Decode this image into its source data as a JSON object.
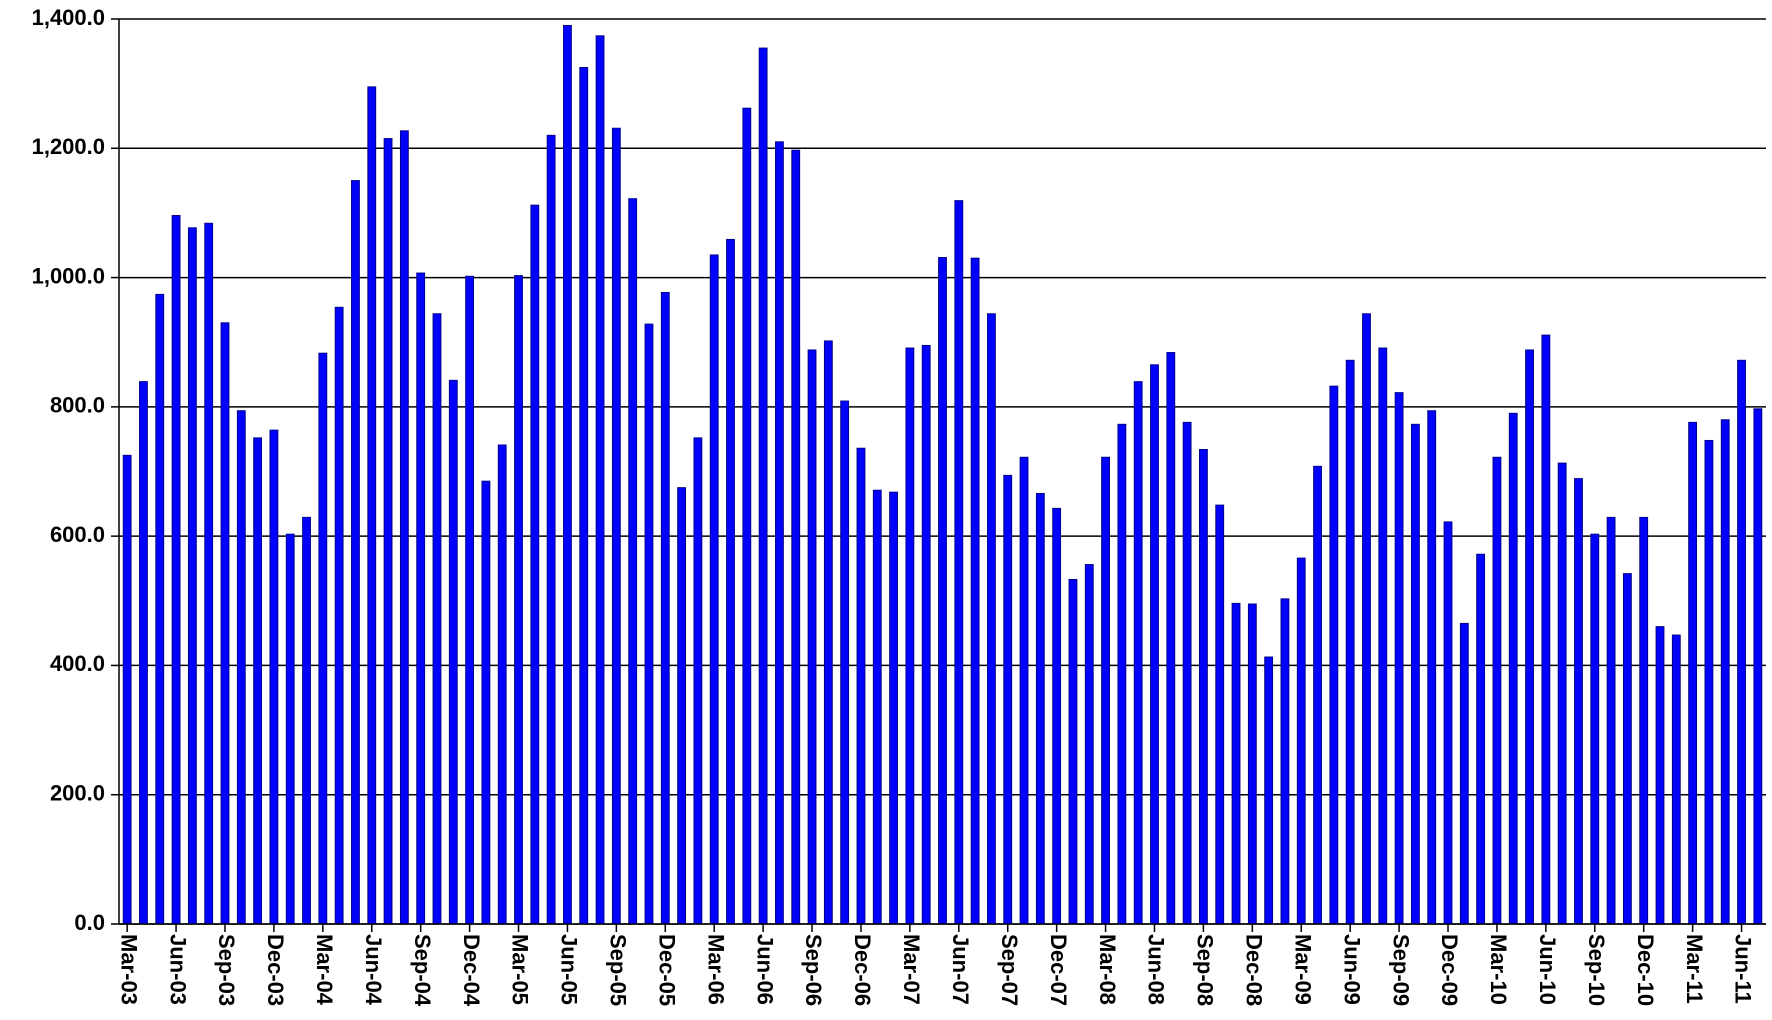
{
  "chart_data": {
    "type": "bar",
    "color": "#0000ff",
    "categories": [
      "Mar-03",
      null,
      null,
      "Jun-03",
      null,
      null,
      "Sep-03",
      null,
      null,
      "Dec-03",
      null,
      null,
      "Mar-04",
      null,
      null,
      "Jun-04",
      null,
      null,
      "Sep-04",
      null,
      null,
      "Dec-04",
      null,
      null,
      "Mar-05",
      null,
      null,
      "Jun-05",
      null,
      null,
      "Sep-05",
      null,
      null,
      "Dec-05",
      null,
      null,
      "Mar-06",
      null,
      null,
      "Jun-06",
      null,
      null,
      "Sep-06",
      null,
      null,
      "Dec-06",
      null,
      null,
      "Mar-07",
      null,
      null,
      "Jun-07",
      null,
      null,
      "Sep-07",
      null,
      null,
      "Dec-07",
      null,
      null,
      "Mar-08",
      null,
      null,
      "Jun-08",
      null,
      null,
      "Sep-08",
      null,
      null,
      "Dec-08",
      null,
      null,
      "Mar-09",
      null,
      null,
      "Jun-09",
      null,
      null,
      "Sep-09",
      null,
      null,
      "Dec-09",
      null,
      null,
      "Mar-10",
      null,
      null,
      "Jun-10",
      null,
      null,
      "Sep-10",
      null,
      null,
      "Dec-10",
      null,
      null,
      "Mar-11",
      null,
      null,
      "Jun-11",
      null
    ],
    "values": [
      725,
      839,
      974,
      1096,
      1077,
      1084,
      930,
      794,
      752,
      764,
      603,
      629,
      883,
      954,
      1150,
      1295,
      1215,
      1227,
      1007,
      944,
      841,
      1002,
      685,
      741,
      1003,
      1112,
      1220,
      1390,
      1325,
      1374,
      1231,
      1122,
      928,
      977,
      675,
      752,
      1035,
      1059,
      1262,
      1355,
      1210,
      1197,
      888,
      902,
      809,
      736,
      671,
      668,
      891,
      895,
      1031,
      1119,
      1030,
      944,
      694,
      722,
      666,
      643,
      533,
      556,
      722,
      773,
      839,
      865,
      884,
      776,
      734,
      648,
      496,
      495,
      413,
      503,
      566,
      708,
      832,
      872,
      944,
      891,
      822,
      773,
      794,
      622,
      465,
      572,
      722,
      790,
      888,
      911,
      713,
      689,
      603,
      629,
      542,
      629,
      460,
      447,
      776,
      748,
      780,
      872,
      797
    ],
    "ylim": [
      0,
      1400
    ],
    "yticks": [
      {
        "value": 0,
        "label": "0.0"
      },
      {
        "value": 200,
        "label": "200.0"
      },
      {
        "value": 400,
        "label": "400.0"
      },
      {
        "value": 600,
        "label": "600.0"
      },
      {
        "value": 800,
        "label": "800.0"
      },
      {
        "value": 1000,
        "label": "1,000.0"
      },
      {
        "value": 1200,
        "label": "1,200.0"
      },
      {
        "value": 1400,
        "label": "1,400.0"
      }
    ],
    "grid": true
  }
}
